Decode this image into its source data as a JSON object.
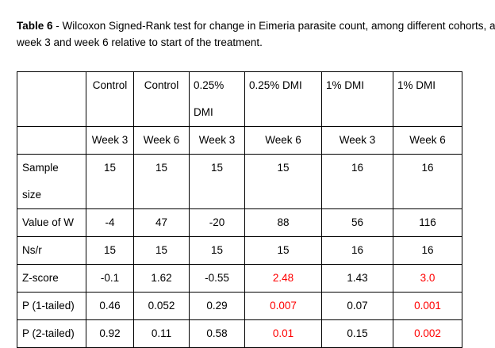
{
  "caption": {
    "label": "Table 6",
    "line1_rest": " - Wilcoxon Signed-Rank test for change in Eimeria parasite count, among different cohorts, a",
    "line2": "week 3 and week 6 relative to start of the treatment."
  },
  "table": {
    "header_groups": [
      "Control",
      "Control",
      "0.25%",
      "0.25% DMI",
      "1% DMI",
      "1% DMI"
    ],
    "header_group_wrap": "DMI",
    "header_weeks": [
      "Week 3",
      "Week 6",
      "Week 3",
      "Week 6",
      "Week 3",
      "Week 6"
    ],
    "rows": [
      {
        "label_line1": "Sample",
        "label_line2": "size",
        "cells": [
          "15",
          "15",
          "15",
          "15",
          "16",
          "16"
        ]
      },
      {
        "label": "Value of W",
        "cells": [
          "-4",
          "47",
          "-20",
          "88",
          "56",
          "116"
        ]
      },
      {
        "label": "Ns/r",
        "cells": [
          "15",
          "15",
          "15",
          "15",
          "16",
          "16"
        ]
      },
      {
        "label": "Z-score",
        "cells": [
          "-0.1",
          "1.62",
          "-0.55",
          "2.48",
          "1.43",
          "3.0"
        ]
      },
      {
        "label": "P (1-tailed)",
        "cells": [
          "0.46",
          "0.052",
          "0.29",
          "0.007",
          "0.07",
          "0.001"
        ]
      },
      {
        "label": "P (2-tailed)",
        "cells": [
          "0.92",
          "0.11",
          "0.58",
          "0.01",
          "0.15",
          "0.002"
        ]
      }
    ]
  },
  "colors": {
    "highlight": "#ff0000",
    "text": "#000000"
  }
}
